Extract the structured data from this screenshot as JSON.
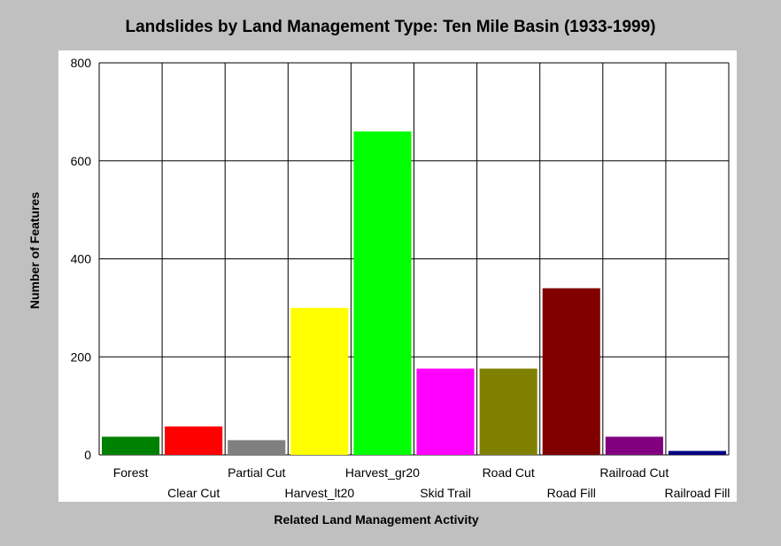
{
  "chart_data": {
    "type": "bar",
    "title": "Landslides by Land Management Type: Ten Mile Basin (1933-1999)",
    "xlabel": "Related Land Management Activity",
    "ylabel": "Number of Features",
    "categories": [
      "Forest",
      "Clear Cut",
      "Partial Cut",
      "Harvest_lt20",
      "Harvest_gr20",
      "Skid Trail",
      "Road Cut",
      "Road Fill",
      "Railroad Cut",
      "Railroad Fill"
    ],
    "values": [
      37,
      58,
      30,
      300,
      660,
      176,
      176,
      340,
      37,
      8
    ],
    "colors": [
      "#008000",
      "#ff0000",
      "#808080",
      "#ffff00",
      "#00ff00",
      "#ff00ff",
      "#808000",
      "#800000",
      "#800080",
      "#000080"
    ],
    "ylim": [
      0,
      800
    ],
    "yticks": [
      0,
      200,
      400,
      600,
      800
    ],
    "grid": true,
    "legend": "none"
  }
}
